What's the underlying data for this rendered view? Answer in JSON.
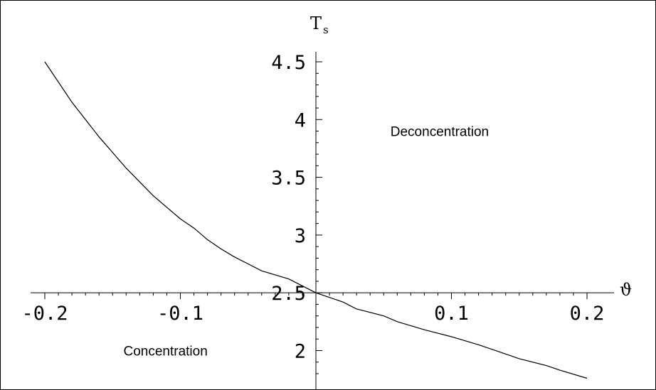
{
  "chart_data": {
    "type": "line",
    "ylabel": "T",
    "ylabel_subscript": "s",
    "xlabel": "ϑ",
    "xlim": [
      -0.2,
      0.2
    ],
    "ylim": [
      1.72,
      4.5
    ],
    "axis_origin": {
      "x": 0,
      "y": 2.5
    },
    "x_ticks": [
      {
        "value": -0.2,
        "label": "-0.2"
      },
      {
        "value": -0.1,
        "label": "-0.1"
      },
      {
        "value": 0.1,
        "label": "0.1"
      },
      {
        "value": 0.2,
        "label": "0.2"
      }
    ],
    "y_ticks": [
      {
        "value": 2,
        "label": "2"
      },
      {
        "value": 2.5,
        "label": "2.5"
      },
      {
        "value": 3,
        "label": "3"
      },
      {
        "value": 3.5,
        "label": "3.5"
      },
      {
        "value": 4,
        "label": "4"
      },
      {
        "value": 4.5,
        "label": "4.5"
      }
    ],
    "grid": false,
    "series": [
      {
        "x": [
          -0.2,
          -0.18,
          -0.16,
          -0.14,
          -0.12,
          -0.1,
          -0.09,
          -0.08,
          -0.07,
          -0.06,
          -0.05,
          -0.04,
          -0.02,
          0,
          0.01,
          0.02,
          0.03,
          0.05,
          0.06,
          0.08,
          0.1,
          0.12,
          0.135,
          0.15,
          0.17,
          0.18,
          0.2
        ],
        "y": [
          4.5,
          4.15,
          3.85,
          3.58,
          3.34,
          3.14,
          3.06,
          2.96,
          2.88,
          2.81,
          2.75,
          2.69,
          2.62,
          2.5,
          2.46,
          2.42,
          2.36,
          2.3,
          2.25,
          2.18,
          2.12,
          2.05,
          1.99,
          1.93,
          1.87,
          1.83,
          1.76
        ]
      }
    ],
    "annotations": [
      {
        "text": "Deconcentration",
        "x": 0.055,
        "y": 3.9
      },
      {
        "text": "Concentration",
        "x": -0.142,
        "y": 2
      }
    ]
  }
}
